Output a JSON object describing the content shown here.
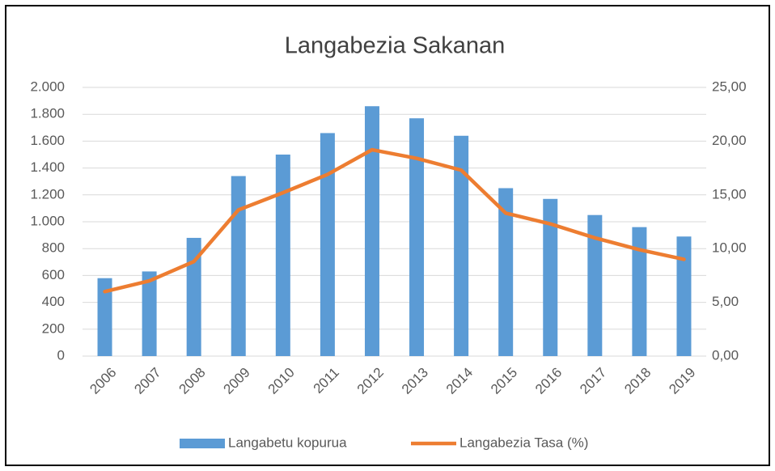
{
  "chart_data": {
    "type": "bar_line",
    "title": "Langabezia Sakanan",
    "categories": [
      "2006",
      "2007",
      "2008",
      "2009",
      "2010",
      "2011",
      "2012",
      "2013",
      "2014",
      "2015",
      "2016",
      "2017",
      "2018",
      "2019"
    ],
    "series": [
      {
        "name": "Langabetu kopurua",
        "color": "#5b9bd5",
        "type": "bar",
        "axis": "y",
        "values": [
          580,
          630,
          880,
          1340,
          1500,
          1660,
          1860,
          1770,
          1640,
          1250,
          1170,
          1050,
          960,
          890
        ]
      },
      {
        "name": "Langabezia Tasa (%)",
        "color": "#ed7d31",
        "type": "line",
        "axis": "y2",
        "values": [
          6.0,
          7.0,
          8.8,
          13.6,
          15.2,
          16.9,
          19.2,
          18.4,
          17.3,
          13.3,
          12.3,
          11.0,
          9.9,
          9.0
        ]
      }
    ],
    "ylim": [
      0,
      2000
    ],
    "yticks": [
      0,
      200,
      400,
      600,
      800,
      {
        "value": 1000,
        "label": "1.000"
      },
      {
        "value": 1200,
        "label": "1.200"
      },
      {
        "value": 1400,
        "label": "1.400"
      },
      {
        "value": 1600,
        "label": "1.600"
      },
      {
        "value": 1800,
        "label": "1.800"
      },
      {
        "value": 2000,
        "label": "2.000"
      }
    ],
    "y2lim": [
      0,
      25
    ],
    "y2ticks": [
      {
        "value": 0,
        "label": "0,00"
      },
      {
        "value": 5,
        "label": "5,00"
      },
      {
        "value": 10,
        "label": "10,00"
      },
      {
        "value": 15,
        "label": "15,00"
      },
      {
        "value": 20,
        "label": "20,00"
      },
      {
        "value": 25,
        "label": "25,00"
      }
    ],
    "grid": true,
    "legend": "bottom"
  }
}
